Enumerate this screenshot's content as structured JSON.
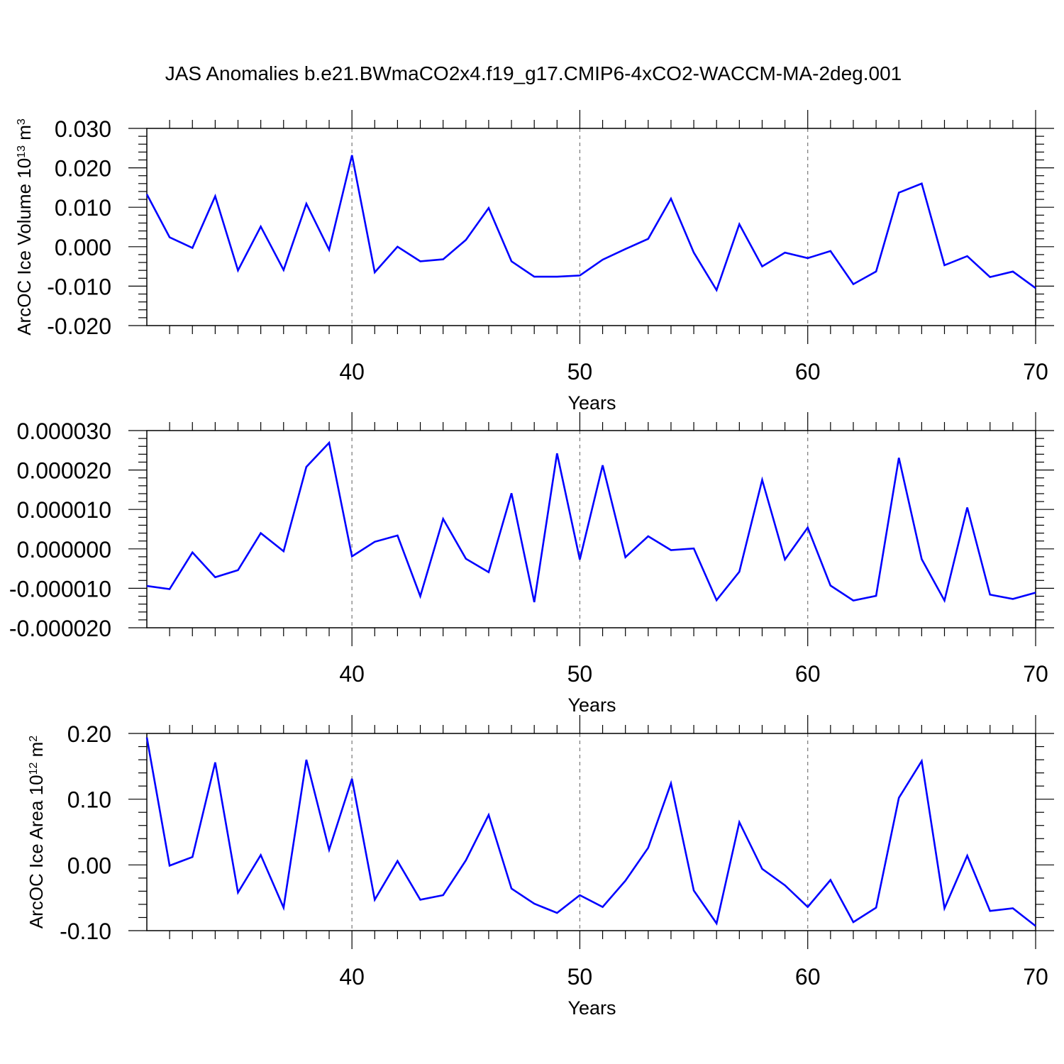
{
  "title": "JAS Anomalies b.e21.BWmaCO2x4.f19_g17.CMIP6-4xCO2-WACCM-MA-2deg.001",
  "line_color": "#0000ff",
  "chart_data": [
    {
      "type": "line",
      "xlabel": "Years",
      "ylabel_main": "ArcOC Ice Volume 10",
      "ylabel_sup1": "13",
      "ylabel_mid": " m",
      "ylabel_sup2": "3",
      "xlim": [
        31,
        70
      ],
      "ylim": [
        -0.02,
        0.03
      ],
      "x_ticks": [
        40,
        50,
        60,
        70
      ],
      "x_tick_labels": [
        "40",
        "50",
        "60",
        "70"
      ],
      "y_ticks": [
        -0.02,
        -0.01,
        0.0,
        0.01,
        0.02,
        0.03
      ],
      "y_tick_labels": [
        "-0.020",
        "-0.010",
        "0.000",
        "0.010",
        "0.020",
        "0.030"
      ],
      "x": [
        31,
        32,
        33,
        34,
        35,
        36,
        37,
        38,
        39,
        40,
        41,
        42,
        43,
        44,
        45,
        46,
        47,
        48,
        49,
        50,
        51,
        52,
        53,
        54,
        55,
        56,
        57,
        58,
        59,
        60,
        61,
        62,
        63,
        64,
        65,
        66,
        67,
        68,
        69,
        70
      ],
      "values": [
        0.0133,
        0.0024,
        -0.0003,
        0.0128,
        -0.006,
        0.0051,
        -0.0059,
        0.0109,
        -0.0008,
        0.0232,
        -0.0065,
        0.0,
        -0.0037,
        -0.0032,
        0.0017,
        0.0098,
        -0.0037,
        -0.0076,
        -0.0076,
        -0.0073,
        -0.0033,
        -0.0006,
        0.002,
        0.0122,
        -0.0015,
        -0.011,
        0.0057,
        -0.005,
        -0.0015,
        -0.0029,
        -0.0011,
        -0.0095,
        -0.0063,
        0.0137,
        0.016,
        -0.0047,
        -0.0024,
        -0.0077,
        -0.0063,
        -0.0105
      ]
    },
    {
      "type": "line",
      "xlabel": "Years",
      "xlim": [
        31,
        70
      ],
      "ylim": [
        -2e-05,
        3e-05
      ],
      "x_ticks": [
        40,
        50,
        60,
        70
      ],
      "x_tick_labels": [
        "40",
        "50",
        "60",
        "70"
      ],
      "y_ticks": [
        -2e-05,
        -1e-05,
        0.0,
        1e-05,
        2e-05,
        3e-05
      ],
      "y_tick_labels": [
        "-0.000020",
        "-0.000010",
        "0.000000",
        "0.000010",
        "0.000020",
        "0.000030"
      ],
      "x": [
        31,
        32,
        33,
        34,
        35,
        36,
        37,
        38,
        39,
        40,
        41,
        42,
        43,
        44,
        45,
        46,
        47,
        48,
        49,
        50,
        51,
        52,
        53,
        54,
        55,
        56,
        57,
        58,
        59,
        60,
        61,
        62,
        63,
        64,
        65,
        66,
        67,
        68,
        69,
        70
      ],
      "values": [
        -9.4e-06,
        -1.02e-05,
        -9e-07,
        -7.2e-06,
        -5.4e-06,
        4e-06,
        -6e-07,
        2.08e-05,
        2.69e-05,
        -1.9e-06,
        1.8e-06,
        3.4e-06,
        -1.2e-05,
        7.6e-06,
        -2.5e-06,
        -5.9e-06,
        1.41e-05,
        -1.35e-05,
        2.42e-05,
        -2.7e-06,
        2.12e-05,
        -2.1e-06,
        3.2e-06,
        -3e-07,
        1e-07,
        -1.3e-05,
        -5.8e-06,
        1.75e-05,
        -2.7e-06,
        5.4e-06,
        -9.3e-06,
        -1.31e-05,
        -1.19e-05,
        2.31e-05,
        -2.6e-06,
        -1.31e-05,
        1.05e-05,
        -1.16e-05,
        -1.27e-05,
        -1.11e-05
      ]
    },
    {
      "type": "line",
      "xlabel": "Years",
      "ylabel_main": "ArcOC Ice Area 10",
      "ylabel_sup1": "12",
      "ylabel_mid": " m",
      "ylabel_sup2": "2",
      "xlim": [
        31,
        70
      ],
      "ylim": [
        -0.1,
        0.2
      ],
      "x_ticks": [
        40,
        50,
        60,
        70
      ],
      "x_tick_labels": [
        "40",
        "50",
        "60",
        "70"
      ],
      "y_ticks": [
        -0.1,
        0.0,
        0.1,
        0.2
      ],
      "y_tick_labels": [
        "-0.10",
        "0.00",
        "0.10",
        "0.20"
      ],
      "x": [
        31,
        32,
        33,
        34,
        35,
        36,
        37,
        38,
        39,
        40,
        41,
        42,
        43,
        44,
        45,
        46,
        47,
        48,
        49,
        50,
        51,
        52,
        53,
        54,
        55,
        56,
        57,
        58,
        59,
        60,
        61,
        62,
        63,
        64,
        65,
        66,
        67,
        68,
        69,
        70
      ],
      "values": [
        0.194,
        -0.001,
        0.012,
        0.156,
        -0.042,
        0.015,
        -0.065,
        0.16,
        0.023,
        0.131,
        -0.053,
        0.006,
        -0.053,
        -0.046,
        0.007,
        0.076,
        -0.036,
        -0.059,
        -0.073,
        -0.046,
        -0.064,
        -0.024,
        0.026,
        0.124,
        -0.039,
        -0.089,
        0.065,
        -0.006,
        -0.031,
        -0.064,
        -0.023,
        -0.087,
        -0.065,
        0.102,
        0.158,
        -0.066,
        0.014,
        -0.07,
        -0.066,
        -0.093
      ]
    }
  ]
}
